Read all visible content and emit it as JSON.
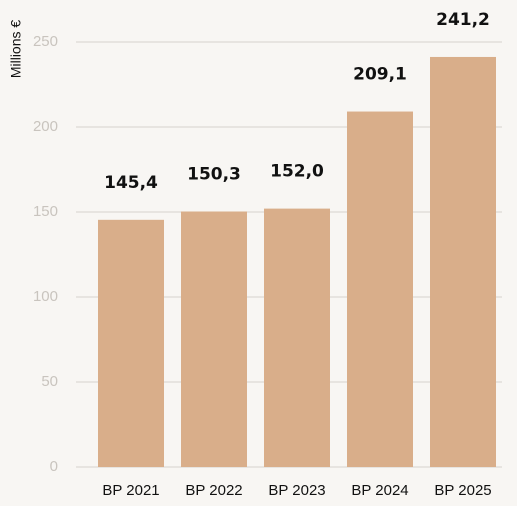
{
  "colors": {
    "bar": "#d9ae8a",
    "grid": "#d6d2cc",
    "background": "#f8f6f3",
    "tick_text": "#c9c4be"
  },
  "chart_data": {
    "type": "bar",
    "title": "",
    "xlabel": "",
    "ylabel": "Millions €",
    "ylim": [
      0,
      250
    ],
    "yticks": [
      "0",
      "50",
      "100",
      "150",
      "200",
      "250"
    ],
    "grid": true,
    "categories": [
      "BP 2021",
      "BP 2022",
      "BP 2023",
      "BP 2024",
      "BP 2025"
    ],
    "values": [
      145.4,
      150.3,
      152.0,
      209.1,
      241.2
    ],
    "data_labels": [
      "145,4",
      "150,3",
      "152,0",
      "209,1",
      "241,2"
    ]
  }
}
